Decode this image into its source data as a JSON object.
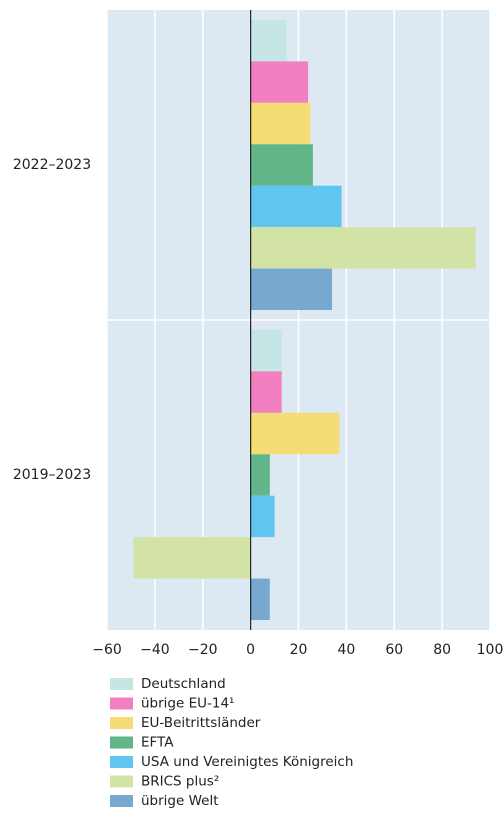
{
  "chart_data": {
    "type": "hbar",
    "categories": [
      "2022–2023",
      "2019–2023"
    ],
    "series": [
      {
        "name": "Deutschland",
        "color": "#c5e6e4",
        "values": [
          15,
          13
        ]
      },
      {
        "name": "übrige EU-14¹",
        "color": "#f27fbf",
        "values": [
          24,
          13
        ]
      },
      {
        "name": "EU-Beitrittsländer",
        "color": "#f5dc74",
        "values": [
          25,
          37
        ]
      },
      {
        "name": "EFTA",
        "color": "#62b68a",
        "values": [
          26,
          8
        ]
      },
      {
        "name": "USA und Vereinigtes Königreich",
        "color": "#5ec6ef",
        "values": [
          38,
          10
        ]
      },
      {
        "name": "BRICS plus²",
        "color": "#d3e3a5",
        "values": [
          94,
          -49
        ]
      },
      {
        "name": "übrige Welt",
        "color": "#77a8cf",
        "values": [
          34,
          8
        ]
      }
    ],
    "xlim": [
      -60,
      100
    ],
    "xticks": [
      {
        "value": -60,
        "label": "−60"
      },
      {
        "value": -40,
        "label": "−40"
      },
      {
        "value": -20,
        "label": "−20"
      },
      0,
      20,
      40,
      60,
      80,
      100
    ],
    "grid": true
  }
}
